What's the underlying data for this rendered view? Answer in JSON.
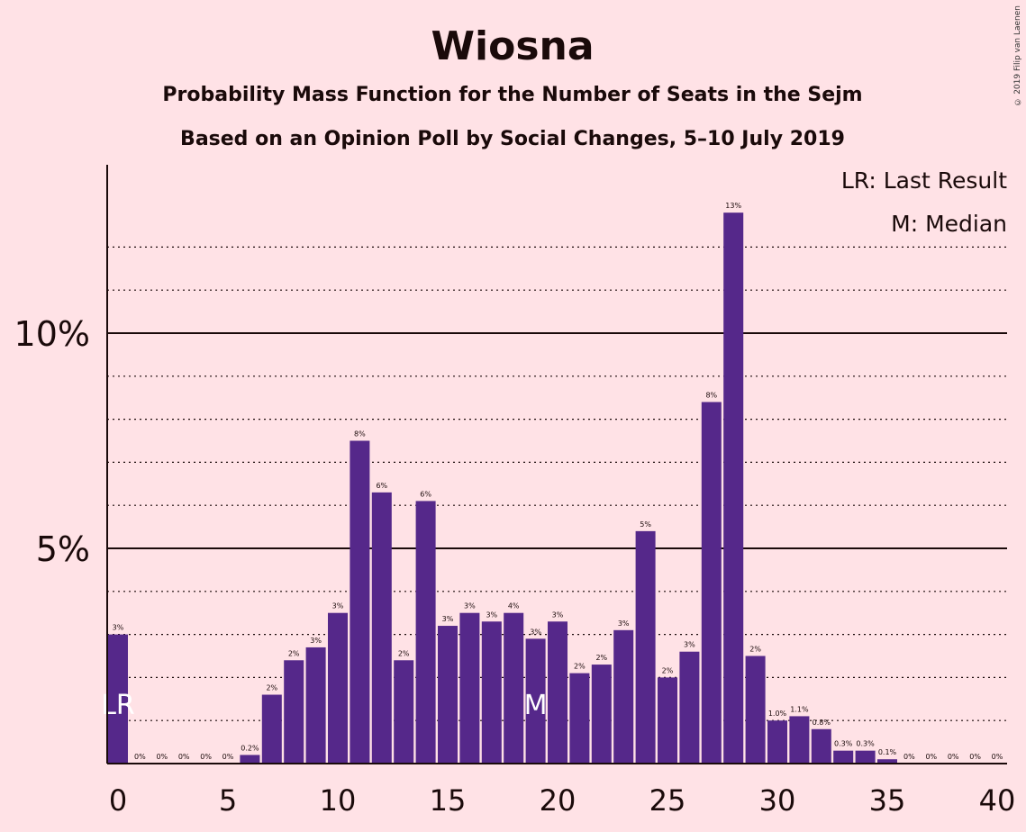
{
  "chart_data": {
    "type": "bar",
    "title": "Wiosna",
    "subtitle1": "Probability Mass Function for the Number of Seats in the Sejm",
    "subtitle2": "Based on an Opinion Poll by Social Changes, 5–10 July 2019",
    "copyright": "© 2019 Filip van Laenen",
    "legend": [
      "LR: Last Result",
      "M: Median"
    ],
    "legend_position": "top-right",
    "bar_color": "#55288a",
    "x": [
      0,
      1,
      2,
      3,
      4,
      5,
      6,
      7,
      8,
      9,
      10,
      11,
      12,
      13,
      14,
      15,
      16,
      17,
      18,
      19,
      20,
      21,
      22,
      23,
      24,
      25,
      26,
      27,
      28,
      29,
      30,
      31,
      32,
      33,
      34,
      35,
      36,
      37,
      38,
      39,
      40
    ],
    "values": [
      3.0,
      0,
      0,
      0,
      0,
      0,
      0.2,
      1.6,
      2.4,
      2.7,
      3.5,
      7.5,
      6.3,
      2.4,
      6.1,
      3.2,
      3.5,
      3.3,
      3.5,
      2.9,
      3.3,
      2.1,
      2.3,
      3.1,
      5.4,
      2.0,
      2.6,
      8.4,
      12.8,
      2.5,
      1.0,
      1.1,
      0.8,
      0.3,
      0.3,
      0.1,
      0,
      0,
      0,
      0,
      0
    ],
    "labels": [
      "3%",
      "0%",
      "0%",
      "0%",
      "0%",
      "0%",
      "0.2%",
      "2%",
      "2%",
      "3%",
      "3%",
      "8%",
      "6%",
      "2%",
      "6%",
      "3%",
      "3%",
      "3%",
      "4%",
      "3%",
      "3%",
      "2%",
      "2%",
      "3%",
      "5%",
      "2%",
      "3%",
      "8%",
      "13%",
      "2%",
      "1.0%",
      "1.1%",
      "0.8%",
      "0.3%",
      "0.3%",
      "0.1%",
      "0%",
      "0%",
      "0%",
      "0%",
      "0%"
    ],
    "x_ticks": [
      "0",
      "5",
      "10",
      "15",
      "20",
      "25",
      "30",
      "35",
      "40"
    ],
    "y_ticks": [
      "5%",
      "10%"
    ],
    "ylim": [
      0,
      14
    ],
    "xlim": [
      0,
      41
    ],
    "last_result_seat": 0,
    "last_result_marker": "LR",
    "median_seat": 19,
    "median_marker": "M",
    "grid": "dotted at every 1%, solid at 5% and 10%"
  }
}
